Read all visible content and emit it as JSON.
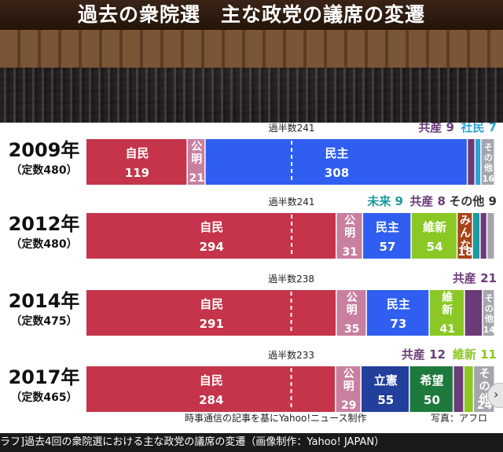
{
  "title": "過去の衆院選　主な政党の議席の変遷",
  "caption": "ラフ]過去4回の衆院選における主な政党の議席の変遷（画像制作：Yahoo! JAPAN）",
  "credit": "時事通信の記事を基にYahoo!ニュース制作",
  "photo_credit": "写真：アフロ",
  "chart_data": {
    "type": "bar",
    "stacked": true,
    "orientation": "horizontal",
    "rows": [
      {
        "year": "2009年",
        "total_label": "（定数480）",
        "total": 480,
        "majority_label": "過半数241",
        "majority": 241,
        "parties": [
          {
            "name": "自民",
            "seats": 119,
            "color": "#c5344a"
          },
          {
            "name": "公明",
            "seats": 21,
            "color": "#c97fa0"
          },
          {
            "name": "民主",
            "seats": 308,
            "color": "#2f5ef0"
          },
          {
            "name": "共産",
            "seats": 9,
            "color": "#6b3b78"
          },
          {
            "name": "社民",
            "seats": 7,
            "color": "#29a3d6"
          },
          {
            "name": "その他",
            "seats": 16,
            "color": "#a5a5ad"
          }
        ]
      },
      {
        "year": "2012年",
        "total_label": "（定数480）",
        "total": 480,
        "majority_label": "過半数241",
        "majority": 241,
        "parties": [
          {
            "name": "自民",
            "seats": 294,
            "color": "#c5344a"
          },
          {
            "name": "公明",
            "seats": 31,
            "color": "#c97fa0"
          },
          {
            "name": "民主",
            "seats": 57,
            "color": "#2f5ef0"
          },
          {
            "name": "維新",
            "seats": 54,
            "color": "#8bc825"
          },
          {
            "name": "みんな",
            "seats": 18,
            "color": "#a84419"
          },
          {
            "name": "未来",
            "seats": 9,
            "color": "#1e9aa0"
          },
          {
            "name": "共産",
            "seats": 8,
            "color": "#6b3b78"
          },
          {
            "name": "その他",
            "seats": 9,
            "color": "#a5a5ad"
          }
        ]
      },
      {
        "year": "2014年",
        "total_label": "（定数475）",
        "total": 475,
        "majority_label": "過半数238",
        "majority": 238,
        "parties": [
          {
            "name": "自民",
            "seats": 291,
            "color": "#c5344a"
          },
          {
            "name": "公明",
            "seats": 35,
            "color": "#c97fa0"
          },
          {
            "name": "民主",
            "seats": 73,
            "color": "#2f5ef0"
          },
          {
            "name": "維新",
            "seats": 41,
            "color": "#8bc825"
          },
          {
            "name": "共産",
            "seats": 21,
            "color": "#6b3b78"
          },
          {
            "name": "その他",
            "seats": 14,
            "color": "#a5a5ad"
          }
        ]
      },
      {
        "year": "2017年",
        "total_label": "（定数465）",
        "total": 465,
        "majority_label": "過半数233",
        "majority": 233,
        "parties": [
          {
            "name": "自民",
            "seats": 284,
            "color": "#c5344a"
          },
          {
            "name": "公明",
            "seats": 29,
            "color": "#c97fa0"
          },
          {
            "name": "立憲",
            "seats": 55,
            "color": "#233f9c"
          },
          {
            "name": "希望",
            "seats": 50,
            "color": "#1e7a3c"
          },
          {
            "name": "共産",
            "seats": 12,
            "color": "#6b3b78"
          },
          {
            "name": "維新",
            "seats": 11,
            "color": "#8bc825"
          },
          {
            "name": "その他",
            "seats": 24,
            "color": "#a5a5ad"
          }
        ]
      }
    ]
  }
}
